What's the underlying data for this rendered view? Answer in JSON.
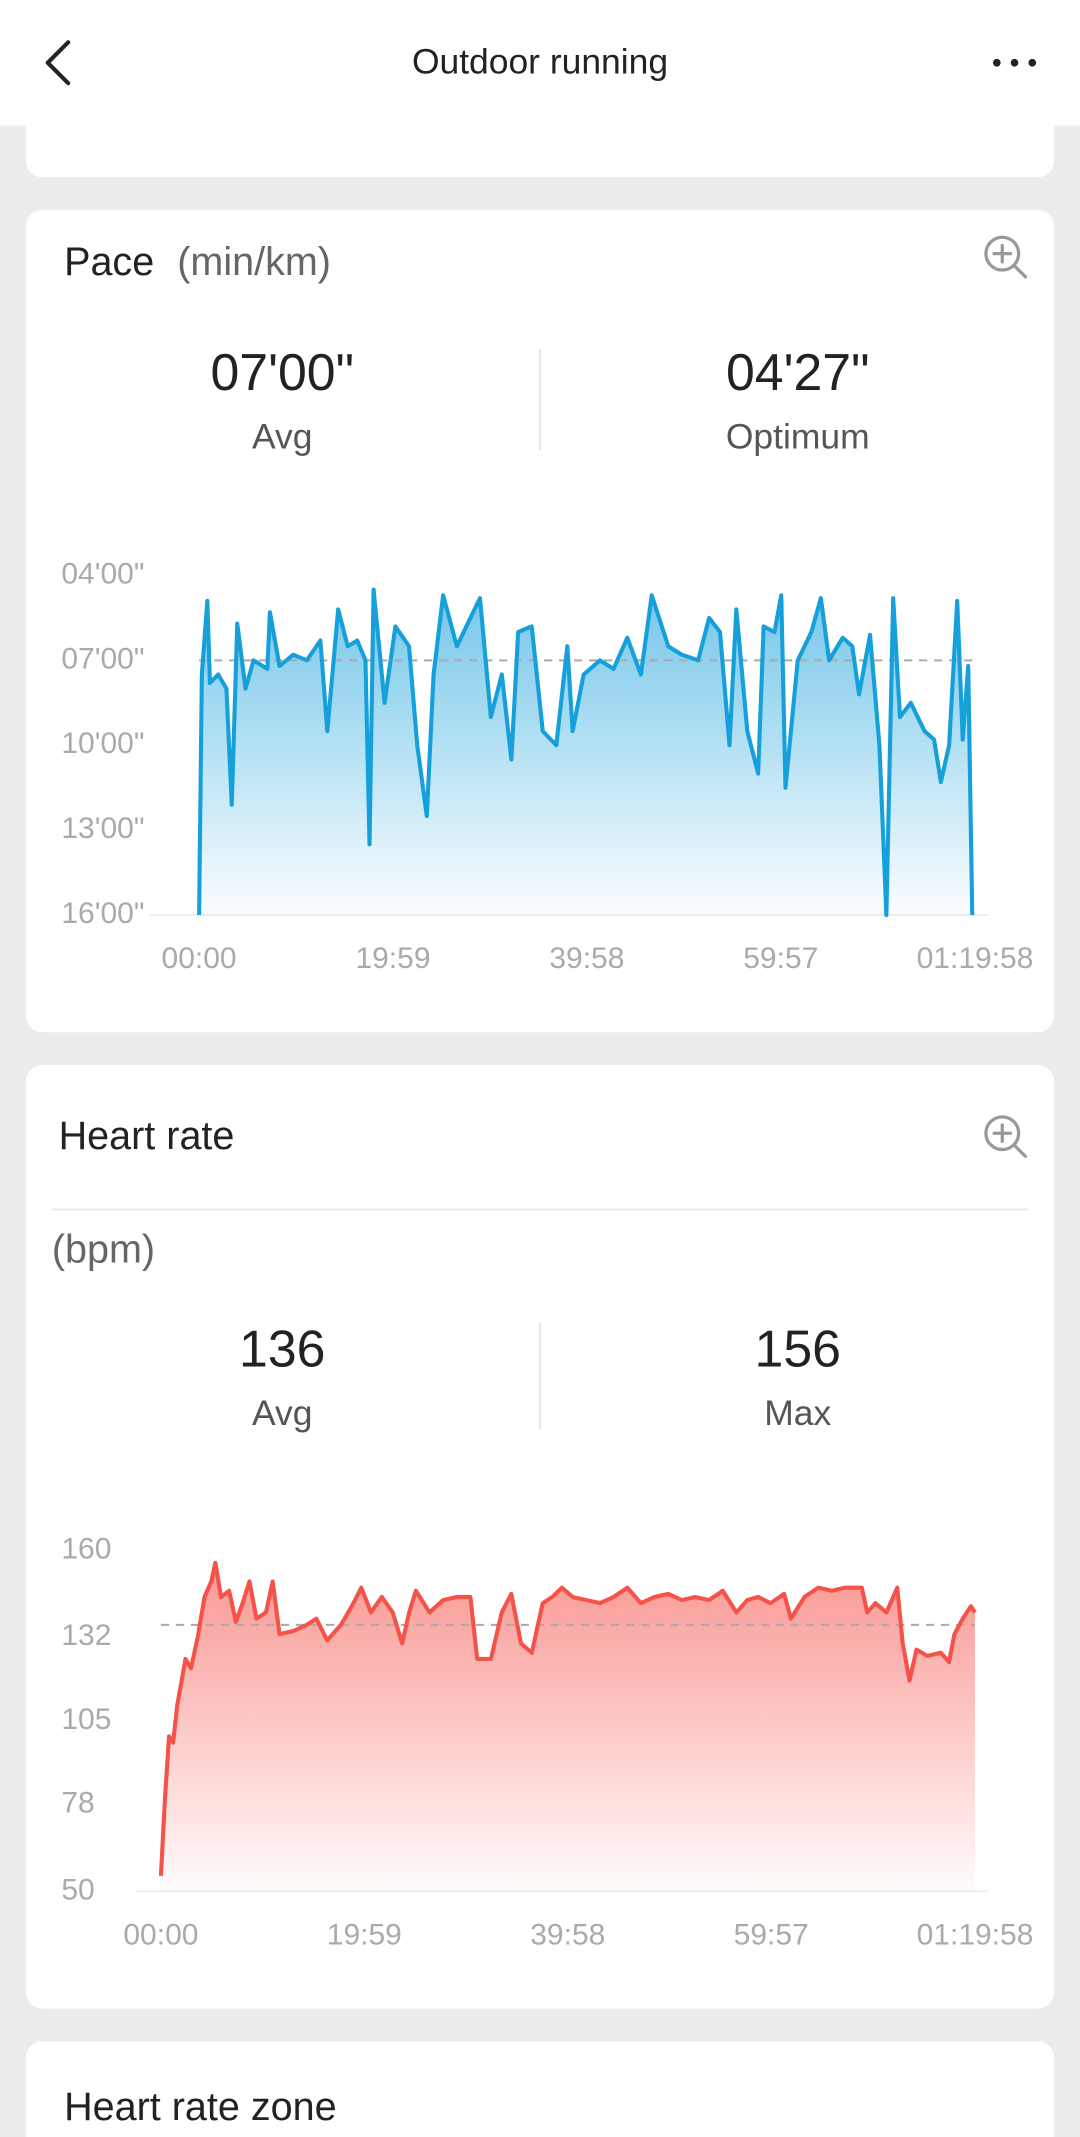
{
  "header": {
    "title": "Outdoor running"
  },
  "chart_data": [
    {
      "type": "area",
      "title": "Pace",
      "unit_label": "(min/km)",
      "stats": [
        {
          "value": "07'00\"",
          "label": "Avg"
        },
        {
          "value": "04'27\"",
          "label": "Optimum"
        }
      ],
      "color": "#16a0db",
      "avg_line": 7,
      "ylim": [
        16,
        4
      ],
      "yticks": [
        {
          "value": 4,
          "label": "04'00\""
        },
        {
          "value": 7,
          "label": "07'00\""
        },
        {
          "value": 10,
          "label": "10'00\""
        },
        {
          "value": 13,
          "label": "13'00\""
        },
        {
          "value": 16,
          "label": "16'00\""
        }
      ],
      "xlim": [
        0,
        4798
      ],
      "xticks": [
        {
          "value": 0,
          "label": "00:00"
        },
        {
          "value": 1199,
          "label": "19:59"
        },
        {
          "value": 2398,
          "label": "39:58"
        },
        {
          "value": 3597,
          "label": "59:57"
        },
        {
          "value": 4798,
          "label": "01:19:58"
        }
      ],
      "x": [
        0,
        17,
        51,
        67,
        118,
        169,
        202,
        236,
        287,
        337,
        422,
        438,
        497,
        582,
        666,
        750,
        793,
        860,
        919,
        978,
        1029,
        1054,
        1079,
        1147,
        1214,
        1298,
        1349,
        1408,
        1450,
        1509,
        1594,
        1678,
        1737,
        1804,
        1872,
        1931,
        1973,
        2057,
        2125,
        2209,
        2277,
        2310,
        2378,
        2479,
        2563,
        2648,
        2732,
        2799,
        2901,
        2985,
        3086,
        3154,
        3221,
        3280,
        3322,
        3390,
        3457,
        3491,
        3558,
        3600,
        3626,
        3702,
        3786,
        3845,
        3896,
        3980,
        4039,
        4081,
        4149,
        4207,
        4250,
        4292,
        4334,
        4401,
        4486,
        4545,
        4587,
        4638,
        4688,
        4722,
        4756,
        4781
      ],
      "values": [
        16,
        7.5,
        4.9,
        7.8,
        7.5,
        8,
        12.1,
        5.7,
        8,
        7,
        7.3,
        5.3,
        7.2,
        6.8,
        7,
        6.3,
        9.5,
        5.2,
        6.5,
        6.3,
        7,
        13.5,
        4.5,
        8.5,
        5.8,
        6.5,
        10,
        12.5,
        7.5,
        4.7,
        6.5,
        5.5,
        4.8,
        9,
        7.5,
        10.5,
        6,
        5.8,
        9.5,
        10,
        6.5,
        9.5,
        7.5,
        7,
        7.3,
        6.2,
        7.5,
        4.7,
        6.5,
        6.8,
        7,
        5.5,
        6,
        10,
        5.2,
        9.5,
        11,
        5.8,
        6,
        4.7,
        11.5,
        7,
        6,
        4.8,
        7,
        6.2,
        6.5,
        8.2,
        6.1,
        10,
        16,
        4.8,
        9,
        8.5,
        9.5,
        9.8,
        11.3,
        10,
        4.9,
        9.8,
        7.2,
        16
      ]
    },
    {
      "type": "area",
      "title": "Heart rate",
      "unit_label": "(bpm)",
      "stats": [
        {
          "value": "136",
          "label": "Avg"
        },
        {
          "value": "156",
          "label": "Max"
        }
      ],
      "color": "#f5524a",
      "avg_line": 136,
      "ylim": [
        50,
        160
      ],
      "yticks": [
        160,
        132,
        105,
        78,
        50
      ],
      "xlim": [
        0,
        4798
      ],
      "xticks": [
        {
          "value": 0,
          "label": "00:00"
        },
        {
          "value": 1199,
          "label": "19:59"
        },
        {
          "value": 2398,
          "label": "39:58"
        },
        {
          "value": 3597,
          "label": "59:57"
        },
        {
          "value": 4798,
          "label": "01:19:58"
        }
      ],
      "x": [
        0,
        24,
        48,
        72,
        96,
        145,
        177,
        217,
        257,
        297,
        321,
        354,
        402,
        442,
        482,
        522,
        563,
        619,
        659,
        699,
        780,
        860,
        916,
        980,
        1061,
        1125,
        1181,
        1238,
        1302,
        1366,
        1422,
        1463,
        1503,
        1583,
        1664,
        1744,
        1824,
        1864,
        1945,
        2009,
        2065,
        2122,
        2186,
        2250,
        2307,
        2363,
        2427,
        2508,
        2588,
        2668,
        2749,
        2829,
        2909,
        2990,
        3070,
        3150,
        3231,
        3311,
        3392,
        3456,
        3520,
        3593,
        3673,
        3713,
        3793,
        3874,
        3954,
        4034,
        4131,
        4163,
        4211,
        4276,
        4340,
        4372,
        4412,
        4453,
        4517,
        4597,
        4645,
        4677,
        4726,
        4774,
        4798
      ],
      "values": [
        55,
        80,
        100,
        98,
        110,
        125,
        122,
        132,
        145,
        150,
        156,
        145,
        147,
        137,
        143,
        150,
        138,
        140,
        150,
        133,
        134,
        136,
        138,
        131,
        136,
        142,
        148,
        140,
        145,
        140,
        130,
        140,
        147,
        140,
        144,
        145,
        145,
        125,
        125,
        140,
        146,
        130,
        127,
        143,
        145,
        148,
        145,
        144,
        143,
        145,
        148,
        143,
        145,
        146,
        144,
        145,
        144,
        147,
        140,
        144,
        145,
        143,
        146,
        138,
        145,
        148,
        147,
        148,
        148,
        140,
        143,
        140,
        148,
        130,
        118,
        128,
        126,
        127,
        124,
        133,
        138,
        142,
        140
      ]
    }
  ],
  "zone": {
    "title": "Heart rate zone"
  }
}
